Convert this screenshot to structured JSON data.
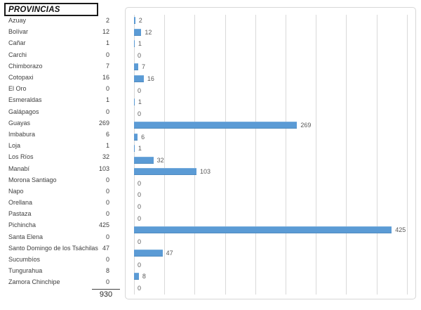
{
  "left_panel": {
    "header": "PROVINCIAS",
    "total": "930",
    "rows": [
      {
        "name": "Azuay",
        "value": "2"
      },
      {
        "name": "Bolívar",
        "value": "12"
      },
      {
        "name": "Cañar",
        "value": "1"
      },
      {
        "name": "Carchi",
        "value": "0"
      },
      {
        "name": "Chimborazo",
        "value": "7"
      },
      {
        "name": "Cotopaxi",
        "value": "16"
      },
      {
        "name": "El Oro",
        "value": "0"
      },
      {
        "name": "Esmeraldas",
        "value": "1"
      },
      {
        "name": "Galápagos",
        "value": "0"
      },
      {
        "name": "Guayas",
        "value": "269"
      },
      {
        "name": "Imbabura",
        "value": "6"
      },
      {
        "name": "Loja",
        "value": "1"
      },
      {
        "name": "Los Ríos",
        "value": "32"
      },
      {
        "name": "Manabí",
        "value": "103"
      },
      {
        "name": "Morona Santiago",
        "value": "0"
      },
      {
        "name": "Napo",
        "value": "0"
      },
      {
        "name": "Orellana",
        "value": "0"
      },
      {
        "name": "Pastaza",
        "value": "0"
      },
      {
        "name": "Pichincha",
        "value": "425"
      },
      {
        "name": "Santa Elena",
        "value": "0"
      },
      {
        "name": "Santo Domingo de los Tsáchilas",
        "value": "47"
      },
      {
        "name": "Sucumbíos",
        "value": "0"
      },
      {
        "name": "Tungurahua",
        "value": "8"
      },
      {
        "name": "Zamora Chinchipe",
        "value": "0"
      }
    ]
  },
  "chart_data": {
    "type": "bar",
    "orientation": "horizontal",
    "title": "",
    "categories": [
      "Azuay",
      "Bolívar",
      "Cañar",
      "Carchi",
      "Chimborazo",
      "Cotopaxi",
      "El Oro",
      "Esmeraldas",
      "Galápagos",
      "Guayas",
      "Imbabura",
      "Loja",
      "Los Ríos",
      "Manabí",
      "Morona Santiago",
      "Napo",
      "Orellana",
      "Pastaza",
      "Pichincha",
      "Santa Elena",
      "Santo Domingo de los Tsáchilas",
      "Sucumbíos",
      "Tungurahua",
      "Zamora Chinchipe"
    ],
    "values": [
      2,
      12,
      1,
      0,
      7,
      16,
      0,
      1,
      0,
      269,
      6,
      1,
      32,
      103,
      0,
      0,
      0,
      0,
      425,
      0,
      47,
      0,
      8,
      0
    ],
    "xlabel": "",
    "ylabel": "",
    "xlim": [
      0,
      450
    ],
    "gridline_interval": 50,
    "grid": true,
    "legend": "none",
    "data_labels": true,
    "axis_tick_labels": "none",
    "bar_color": "#5b9bd5",
    "data_label_color": "#595959",
    "gridline_color": "#d9d9d9",
    "chart_border_color": "#d7d7d7"
  }
}
